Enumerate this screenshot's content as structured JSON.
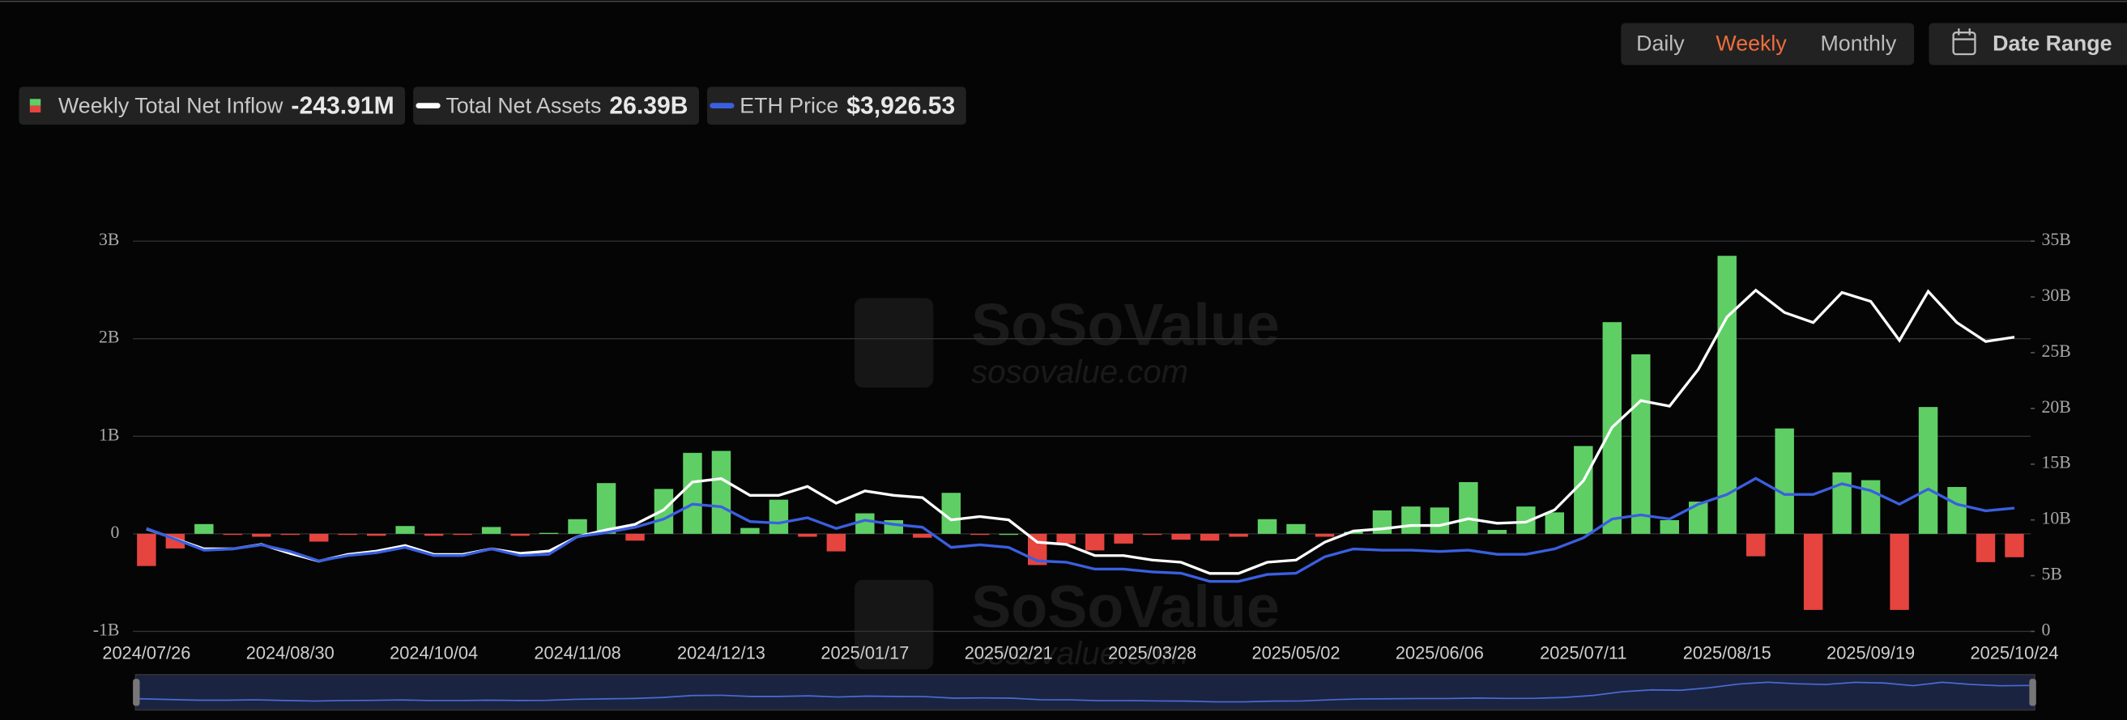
{
  "controls": {
    "periods": [
      "Daily",
      "Weekly",
      "Monthly"
    ],
    "active_period": "Weekly",
    "date_range": "Date Range"
  },
  "watermark": {
    "name": "SoSoValue",
    "url": "sosovalue.com"
  },
  "chart_data": {
    "type": "bar-line",
    "categories": [
      "2024/07/26",
      null,
      null,
      null,
      null,
      "2024/08/30",
      null,
      null,
      null,
      null,
      "2024/10/04",
      null,
      null,
      null,
      null,
      "2024/11/08",
      null,
      null,
      null,
      null,
      "2024/12/13",
      null,
      null,
      null,
      null,
      "2025/01/17",
      null,
      null,
      null,
      null,
      "2025/02/21",
      null,
      null,
      null,
      null,
      "2025/03/28",
      null,
      null,
      null,
      null,
      "2025/05/02",
      null,
      null,
      null,
      null,
      "2025/06/06",
      null,
      null,
      null,
      null,
      "2025/07/11",
      null,
      null,
      null,
      null,
      "2025/08/15",
      null,
      null,
      null,
      null,
      "2025/09/19",
      null,
      null,
      null,
      null,
      "2025/10/24"
    ],
    "series": [
      {
        "name": "Weekly Total Net Inflow",
        "legend_value": "-243.91M",
        "kind": "bar",
        "axis": "y",
        "color_positive": "#5fcf65",
        "color_negative": "#e5443f",
        "values": [
          -0.33,
          -0.15,
          0.1,
          -0.01,
          -0.03,
          -0.01,
          -0.08,
          -0.01,
          -0.02,
          0.08,
          -0.02,
          -0.01,
          0.07,
          -0.02,
          0.01,
          0.15,
          0.52,
          -0.07,
          0.46,
          0.83,
          0.85,
          0.06,
          0.35,
          -0.03,
          -0.18,
          0.21,
          0.14,
          -0.04,
          0.42,
          -0.01,
          0,
          -0.32,
          -0.1,
          -0.17,
          -0.1,
          -0.01,
          -0.06,
          -0.07,
          -0.03,
          0.15,
          0.1,
          -0.03,
          0.02,
          0.24,
          0.28,
          0.27,
          0.53,
          0.04,
          0.28,
          0.22,
          0.9,
          2.17,
          1.84,
          0.14,
          0.33,
          2.85,
          -0.23,
          1.08,
          -0.78,
          0.63,
          0.55,
          -0.78,
          1.3,
          0.48,
          -0.29,
          -0.24
        ]
      },
      {
        "name": "Total Net Assets",
        "legend_value": "26.39B",
        "kind": "line",
        "axis": "y2",
        "color": "#ffffff",
        "values": [
          9.2,
          8.3,
          7.4,
          7.4,
          7.8,
          7.0,
          6.3,
          6.9,
          7.2,
          7.7,
          6.9,
          6.9,
          7.4,
          7.0,
          7.2,
          8.5,
          9.1,
          9.6,
          10.9,
          13.4,
          13.7,
          12.2,
          12.2,
          13.0,
          11.5,
          12.6,
          12.2,
          12.0,
          10.0,
          10.3,
          10.0,
          8.0,
          7.8,
          6.8,
          6.8,
          6.4,
          6.2,
          5.2,
          5.2,
          6.2,
          6.4,
          8.0,
          9.0,
          9.2,
          9.5,
          9.5,
          10.1,
          9.7,
          9.8,
          10.9,
          13.5,
          18.3,
          20.7,
          20.2,
          23.5,
          28.2,
          30.6,
          28.6,
          27.7,
          30.4,
          29.6,
          26.1,
          30.5,
          27.7,
          26.0,
          26.39
        ]
      },
      {
        "name": "ETH Price",
        "legend_value": "$3,926.53",
        "kind": "line",
        "axis": "y3",
        "color": "#3a5fe0",
        "values": [
          3280,
          2940,
          2590,
          2630,
          2760,
          2550,
          2250,
          2420,
          2510,
          2680,
          2420,
          2420,
          2630,
          2420,
          2460,
          3020,
          3150,
          3320,
          3580,
          4050,
          3970,
          3500,
          3450,
          3620,
          3280,
          3540,
          3410,
          3320,
          2680,
          2760,
          2680,
          2250,
          2210,
          1990,
          1990,
          1900,
          1860,
          1600,
          1600,
          1820,
          1860,
          2380,
          2630,
          2590,
          2590,
          2550,
          2590,
          2460,
          2460,
          2630,
          2980,
          3580,
          3710,
          3580,
          4050,
          4360,
          4870,
          4360,
          4360,
          4700,
          4480,
          4050,
          4530,
          4050,
          3840,
          3926.53
        ]
      }
    ],
    "ylim": [
      -1,
      3
    ],
    "yticks": [
      {
        "value": 3,
        "label": "3B"
      },
      {
        "value": 2,
        "label": "2B"
      },
      {
        "value": 1,
        "label": "1B"
      },
      0,
      {
        "value": -1,
        "label": "-1B"
      }
    ],
    "y2lim": [
      0,
      35
    ],
    "y2ticks": [
      {
        "value": 35,
        "label": "35B"
      },
      {
        "value": 30,
        "label": "30B"
      },
      {
        "value": 25,
        "label": "25B"
      },
      {
        "value": 20,
        "label": "20B"
      },
      {
        "value": 15,
        "label": "15B"
      },
      {
        "value": 10,
        "label": "10B"
      },
      {
        "value": 5,
        "label": "5B"
      },
      0
    ],
    "y3lim": [
      13,
      12400
    ],
    "grid": true
  }
}
